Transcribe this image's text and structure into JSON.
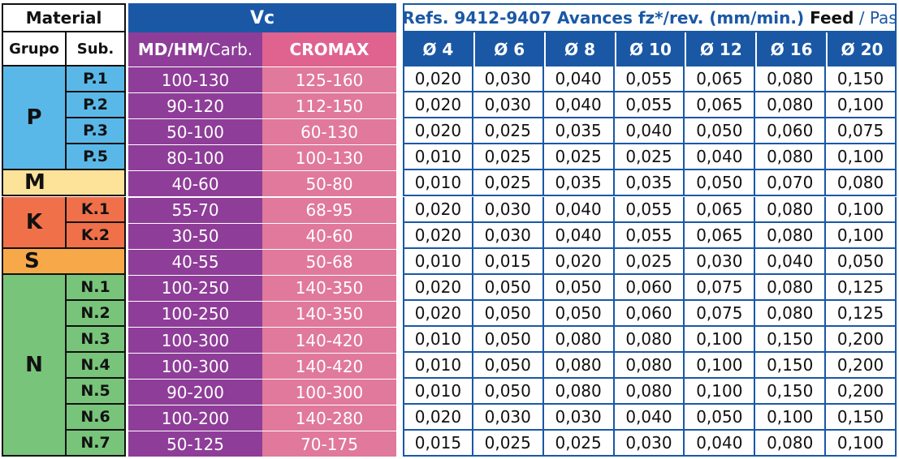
{
  "header": {
    "material": "Material",
    "grupo": "Grupo",
    "sub": "Sub.",
    "vc": "Vc",
    "md_label_bold": "MD/HM/",
    "md_label_light": "Carb.",
    "cromax": "CROMAX",
    "feed_title_bold": "Refs. 9412-9407 Avances fz*/rev. (mm/min.)",
    "feed_title_black": " Feed",
    "feed_title_sep": " / ",
    "feed_title_light": "Pas",
    "diameters": [
      "Ø 4",
      "Ø 6",
      "Ø 8",
      "Ø 10",
      "Ø 12",
      "Ø 16",
      "Ø 20"
    ]
  },
  "groups": [
    {
      "label": "P",
      "color": "#5ab8e8"
    },
    {
      "label": "M",
      "color": "#fde29a"
    },
    {
      "label": "K",
      "color": "#f0704a"
    },
    {
      "label": "S",
      "color": "#f7a94a"
    },
    {
      "label": "N",
      "color": "#78c47a"
    }
  ],
  "rows": [
    {
      "sub": "P.1",
      "md": "100-130",
      "cromax": "125-160",
      "feed": [
        "0,020",
        "0,030",
        "0,040",
        "0,055",
        "0,065",
        "0,080",
        "0,150"
      ]
    },
    {
      "sub": "P.2",
      "md": "90-120",
      "cromax": "112-150",
      "feed": [
        "0,020",
        "0,030",
        "0,040",
        "0,055",
        "0,065",
        "0,080",
        "0,100"
      ]
    },
    {
      "sub": "P.3",
      "md": "50-100",
      "cromax": "60-130",
      "feed": [
        "0,020",
        "0,025",
        "0,035",
        "0,040",
        "0,050",
        "0,060",
        "0,075"
      ]
    },
    {
      "sub": "P.5",
      "md": "80-100",
      "cromax": "100-130",
      "feed": [
        "0,010",
        "0,025",
        "0,025",
        "0,025",
        "0,040",
        "0,080",
        "0,100"
      ]
    },
    {
      "sub": "",
      "md": "40-60",
      "cromax": "50-80",
      "feed": [
        "0,010",
        "0,025",
        "0,035",
        "0,035",
        "0,050",
        "0,070",
        "0,080"
      ]
    },
    {
      "sub": "K.1",
      "md": "55-70",
      "cromax": "68-95",
      "feed": [
        "0,020",
        "0,030",
        "0,040",
        "0,055",
        "0,065",
        "0,080",
        "0,100"
      ]
    },
    {
      "sub": "K.2",
      "md": "30-50",
      "cromax": "40-60",
      "feed": [
        "0,020",
        "0,030",
        "0,040",
        "0,055",
        "0,065",
        "0,080",
        "0,100"
      ]
    },
    {
      "sub": "",
      "md": "40-55",
      "cromax": "50-68",
      "feed": [
        "0,010",
        "0,015",
        "0,020",
        "0,025",
        "0,030",
        "0,040",
        "0,050"
      ]
    },
    {
      "sub": "N.1",
      "md": "100-250",
      "cromax": "140-350",
      "feed": [
        "0,020",
        "0,050",
        "0,050",
        "0,060",
        "0,075",
        "0,080",
        "0,125"
      ]
    },
    {
      "sub": "N.2",
      "md": "100-250",
      "cromax": "140-350",
      "feed": [
        "0,020",
        "0,050",
        "0,050",
        "0,060",
        "0,075",
        "0,080",
        "0,125"
      ]
    },
    {
      "sub": "N.3",
      "md": "100-300",
      "cromax": "140-420",
      "feed": [
        "0,010",
        "0,050",
        "0,080",
        "0,080",
        "0,100",
        "0,150",
        "0,200"
      ]
    },
    {
      "sub": "N.4",
      "md": "100-300",
      "cromax": "140-420",
      "feed": [
        "0,010",
        "0,050",
        "0,080",
        "0,080",
        "0,100",
        "0,150",
        "0,200"
      ]
    },
    {
      "sub": "N.5",
      "md": "90-200",
      "cromax": "100-300",
      "feed": [
        "0,010",
        "0,050",
        "0,080",
        "0,080",
        "0,100",
        "0,150",
        "0,200"
      ]
    },
    {
      "sub": "N.6",
      "md": "100-200",
      "cromax": "140-280",
      "feed": [
        "0,020",
        "0,030",
        "0,030",
        "0,040",
        "0,050",
        "0,100",
        "0,150"
      ]
    },
    {
      "sub": "N.7",
      "md": "50-125",
      "cromax": "70-175",
      "feed": [
        "0,015",
        "0,025",
        "0,025",
        "0,030",
        "0,040",
        "0,080",
        "0,100"
      ]
    }
  ]
}
